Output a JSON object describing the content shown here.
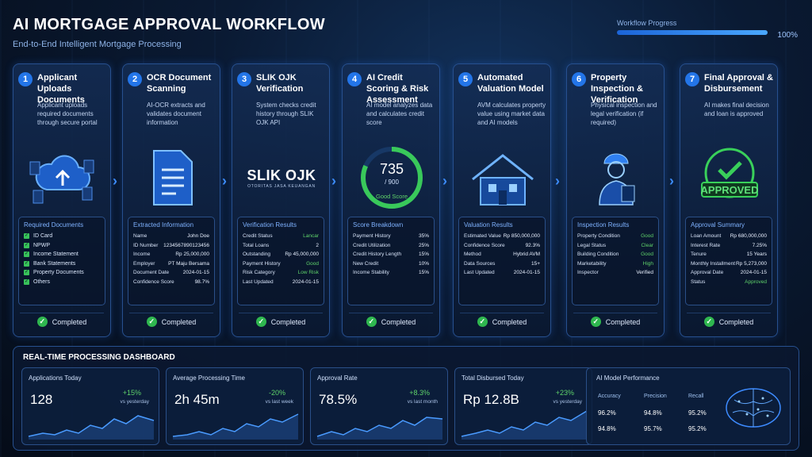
{
  "header": {
    "title": "AI MORTGAGE APPROVAL WORKFLOW",
    "subtitle": "End-to-End Intelligent Mortgage Processing",
    "progress_label": "Workflow Progress",
    "progress_value": "100%",
    "progress": 1.0
  },
  "steps": [
    {
      "num": "1",
      "title": "Applicant Uploads Documents",
      "desc": "Applicant uploads required documents through secure portal",
      "panel_title": "Required Documents",
      "items": [
        "ID Card",
        "NPWP",
        "Income Statement",
        "Bank Statements",
        "Property Documents",
        "Others"
      ],
      "status": "Completed"
    },
    {
      "num": "2",
      "title": "OCR Document Scanning",
      "desc": "AI-OCR extracts and validates document information",
      "panel_title": "Extracted Information",
      "rows": [
        [
          "Name",
          "John Doe"
        ],
        [
          "ID Number",
          "1234567890123456"
        ],
        [
          "Income",
          "Rp 25,000,000"
        ],
        [
          "Employer",
          "PT Maju Bersama"
        ],
        [
          "Document Date",
          "2024-01-15"
        ],
        [
          "Confidence Score",
          "98.7%"
        ]
      ],
      "status": "Completed"
    },
    {
      "num": "3",
      "title": "SLIK OJK Verification",
      "desc": "System checks credit history through SLIK OJK API",
      "logo_main": "SLIK OJK",
      "logo_sub": "OTORITAS JASA KEUANGAN",
      "panel_title": "Verification Results",
      "rows": [
        [
          "Credit Status",
          "Lancar"
        ],
        [
          "Total Loans",
          "2"
        ],
        [
          "Outstanding",
          "Rp 45,000,000"
        ],
        [
          "Payment History",
          "Good"
        ],
        [
          "Risk Category",
          "Low Risk"
        ],
        [
          "Last Updated",
          "2024-01-15"
        ]
      ],
      "status": "Completed"
    },
    {
      "num": "4",
      "title": "AI Credit Scoring & Risk Assessment",
      "desc": "AI model analyzes data and calculates credit score",
      "score": "735",
      "score_max": "/ 900",
      "score_label": "Good Score",
      "panel_title": "Score Breakdown",
      "rows": [
        [
          "Payment History",
          "35%"
        ],
        [
          "Credit Utilization",
          "25%"
        ],
        [
          "Credit History Length",
          "15%"
        ],
        [
          "New Credit",
          "10%"
        ],
        [
          "Income Stability",
          "15%"
        ]
      ],
      "status": "Completed"
    },
    {
      "num": "5",
      "title": "Automated Valuation Model",
      "desc": "AVM calculates property value using market data and AI models",
      "panel_title": "Valuation Results",
      "rows": [
        [
          "Estimated Value",
          "Rp 850,000,000"
        ],
        [
          "Confidence Score",
          "92.3%"
        ],
        [
          "Method",
          "Hybrid AVM"
        ],
        [
          "Data Sources",
          "15+"
        ],
        [
          "Last Updated",
          "2024-01-15"
        ]
      ],
      "status": "Completed"
    },
    {
      "num": "6",
      "title": "Property Inspection & Verification",
      "desc": "Physical inspection and legal verification (if required)",
      "panel_title": "Inspection Results",
      "rows": [
        [
          "Property Condition",
          "Good"
        ],
        [
          "Legal Status",
          "Clear"
        ],
        [
          "Building Condition",
          "Good"
        ],
        [
          "Marketability",
          "High"
        ],
        [
          "Inspector",
          "Verified"
        ]
      ],
      "status": "Completed"
    },
    {
      "num": "7",
      "title": "Final Approval & Disbursement",
      "desc": "AI makes final decision and loan is approved",
      "stamp": "APPROVED",
      "panel_title": "Approval Summary",
      "rows": [
        [
          "Loan Amount",
          "Rp 680,000,000"
        ],
        [
          "Interest Rate",
          "7.25%"
        ],
        [
          "Tenure",
          "15 Years"
        ],
        [
          "Monthly Installment",
          "Rp 5,273,000"
        ],
        [
          "Approval Date",
          "2024-01-15"
        ],
        [
          "Status",
          "Approved"
        ]
      ],
      "status": "Completed"
    }
  ],
  "dashboard": {
    "title": "REAL-TIME PROCESSING DASHBOARD",
    "metrics": [
      {
        "label": "Applications Today",
        "value": "128",
        "change": "+15%",
        "sub": "vs yesterday"
      },
      {
        "label": "Average Processing Time",
        "value": "2h 45m",
        "change": "-20%",
        "sub": "vs last week"
      },
      {
        "label": "Approval Rate",
        "value": "78.5%",
        "change": "+8.3%",
        "sub": "vs last month"
      },
      {
        "label": "Total Disbursed Today",
        "value": "Rp 12.8B",
        "change": "+23%",
        "sub": "vs yesterday"
      }
    ],
    "ai": {
      "label": "AI Model Performance",
      "headers": [
        "Accuracy",
        "Precision",
        "Recall"
      ],
      "row1": [
        "96.2%",
        "94.8%",
        "95.2%"
      ],
      "row2": [
        "94.8%",
        "95.7%",
        "95.2%"
      ]
    }
  }
}
